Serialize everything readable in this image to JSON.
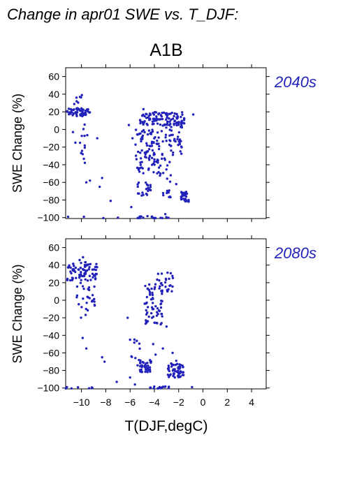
{
  "figure": {
    "title": "Change in apr01 SWE vs. T_DJF:",
    "scenario": "A1B"
  },
  "colors": {
    "points": "#2222bb",
    "axis": "#000000",
    "period_label": "#2222bb"
  },
  "chart_data": [
    {
      "type": "scatter",
      "panel_label": "2040s",
      "xlabel": "T(DJF,degC)",
      "ylabel": "SWE Change (%)",
      "xlim": [
        -11.3,
        5.2
      ],
      "ylim": [
        -101,
        70
      ],
      "xticks": [
        -10,
        -8,
        -6,
        -4,
        -2,
        0,
        2,
        4
      ],
      "yticks": [
        60,
        40,
        20,
        0,
        -20,
        -40,
        -60,
        -80,
        -100
      ],
      "grid": false,
      "clusters": [
        {
          "x": [
            -11.2,
            -9.3
          ],
          "y": [
            15,
            24
          ],
          "n": 55
        },
        {
          "x": [
            -10.6,
            -9.8
          ],
          "y": [
            24,
            39
          ],
          "n": 8
        },
        {
          "x": [
            -10.2,
            -9.5
          ],
          "y": [
            -45,
            10
          ],
          "n": 12
        },
        {
          "x": [
            -5.6,
            -3.6
          ],
          "y": [
            -50,
            0
          ],
          "n": 80
        },
        {
          "x": [
            -5.4,
            -4.3
          ],
          "y": [
            -75,
            -60
          ],
          "n": 22
        },
        {
          "x": [
            -5.2,
            -1.4
          ],
          "y": [
            5,
            20
          ],
          "n": 100
        },
        {
          "x": [
            -4.0,
            -2.6
          ],
          "y": [
            -60,
            5
          ],
          "n": 40
        },
        {
          "x": [
            -2.7,
            -1.7
          ],
          "y": [
            -30,
            15
          ],
          "n": 30
        },
        {
          "x": [
            -1.8,
            -1.1
          ],
          "y": [
            -82,
            -70
          ],
          "n": 30
        },
        {
          "x": [
            -3.3,
            -2.6
          ],
          "y": [
            -78,
            -68
          ],
          "n": 10
        },
        {
          "x": [
            -5.4,
            -2.6
          ],
          "y": [
            -101,
            -98
          ],
          "n": 18
        }
      ],
      "points": [
        [
          -9.6,
          -60
        ],
        [
          -8.5,
          -65
        ],
        [
          -7.6,
          -81
        ],
        [
          -8.3,
          -55
        ],
        [
          -8.7,
          -10
        ],
        [
          -0.8,
          17
        ],
        [
          -6.1,
          5
        ],
        [
          -5.8,
          -10
        ],
        [
          -4.9,
          23
        ],
        [
          -3.7,
          -35
        ],
        [
          -3.5,
          -50
        ],
        [
          -11.1,
          -99
        ],
        [
          -9.8,
          -99
        ],
        [
          -7.0,
          -100
        ],
        [
          -9.3,
          -58
        ],
        [
          -10.5,
          -15
        ],
        [
          -9.9,
          -28
        ],
        [
          -10.7,
          -3
        ],
        [
          -8.2,
          -101
        ],
        [
          -3.1,
          -96
        ],
        [
          -2.2,
          -62
        ],
        [
          -5.9,
          -88
        ]
      ]
    },
    {
      "type": "scatter",
      "panel_label": "2080s",
      "xlabel": "T(DJF,degC)",
      "ylabel": "SWE Change (%)",
      "xlim": [
        -11.3,
        5.2
      ],
      "ylim": [
        -101,
        70
      ],
      "xticks": [
        -10,
        -8,
        -6,
        -4,
        -2,
        0,
        2,
        4
      ],
      "yticks": [
        60,
        40,
        20,
        0,
        -20,
        -40,
        -60,
        -80,
        -100
      ],
      "grid": false,
      "clusters": [
        {
          "x": [
            -11.2,
            -8.7
          ],
          "y": [
            22,
            42
          ],
          "n": 75
        },
        {
          "x": [
            -10.2,
            -9.4
          ],
          "y": [
            38,
            50
          ],
          "n": 6
        },
        {
          "x": [
            -10.4,
            -8.8
          ],
          "y": [
            -20,
            22
          ],
          "n": 28
        },
        {
          "x": [
            -4.8,
            -3.3
          ],
          "y": [
            -30,
            20
          ],
          "n": 65
        },
        {
          "x": [
            -3.8,
            -2.4
          ],
          "y": [
            10,
            32
          ],
          "n": 25
        },
        {
          "x": [
            -5.2,
            -4.2
          ],
          "y": [
            -82,
            -68
          ],
          "n": 40
        },
        {
          "x": [
            -3.0,
            -1.6
          ],
          "y": [
            -88,
            -72
          ],
          "n": 60
        },
        {
          "x": [
            -5.9,
            -5.2
          ],
          "y": [
            -75,
            -40
          ],
          "n": 10
        },
        {
          "x": [
            -4.5,
            -2.8
          ],
          "y": [
            -101,
            -98
          ],
          "n": 18
        },
        {
          "x": [
            -11.3,
            -8.6
          ],
          "y": [
            -101,
            -99
          ],
          "n": 5
        }
      ],
      "points": [
        [
          -8.3,
          -65
        ],
        [
          -8.1,
          -70
        ],
        [
          -7.1,
          -93
        ],
        [
          -9.9,
          -43
        ],
        [
          -9.6,
          -55
        ],
        [
          -6.2,
          -20
        ],
        [
          -6.0,
          -88
        ],
        [
          -5.6,
          -96
        ],
        [
          -4.1,
          -50
        ],
        [
          -3.3,
          -55
        ],
        [
          -0.9,
          -99
        ],
        [
          -2.5,
          -60
        ],
        [
          -4.7,
          -75
        ],
        [
          -3.9,
          -62
        ],
        [
          -6.0,
          -45
        ],
        [
          -3.0,
          -30
        ],
        [
          -2.2,
          -69
        ],
        [
          -9.1,
          -100
        ],
        [
          -11.2,
          -99
        ]
      ]
    }
  ]
}
